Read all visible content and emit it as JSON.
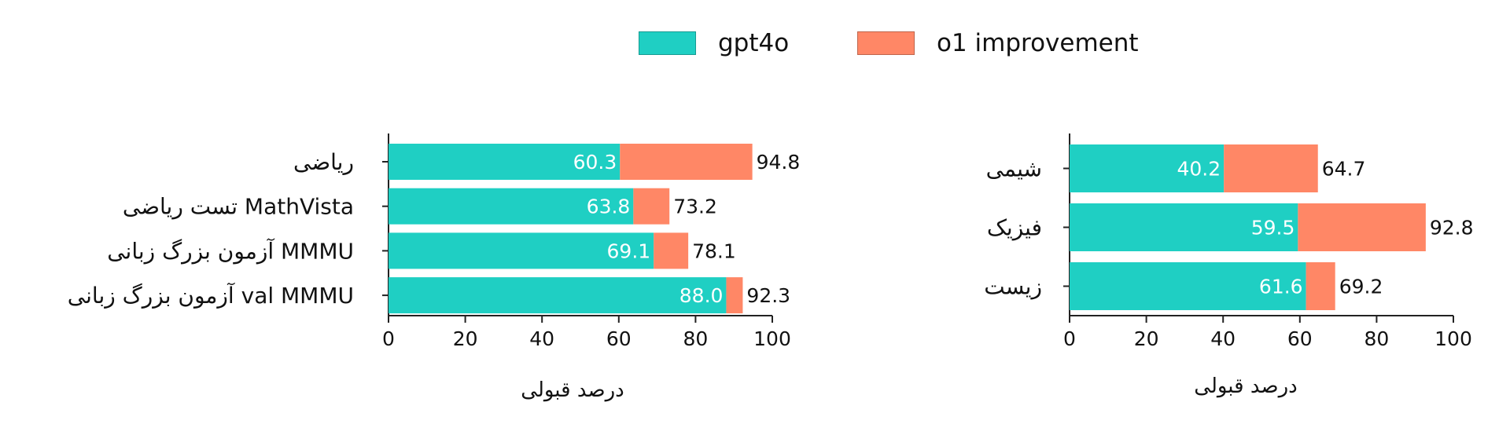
{
  "colors": {
    "gpt4o": "#1fcfc3",
    "o1_improvement": "#ff8766",
    "axis": "#222222"
  },
  "legend": [
    {
      "label": "gpt4o",
      "color_key": "gpt4o"
    },
    {
      "label": "o1 improvement",
      "color_key": "o1_improvement"
    }
  ],
  "chart_data": [
    {
      "type": "bar",
      "orientation": "horizontal",
      "stacked": true,
      "categories": [
        "ریاضی",
        "تست ریاضی MathVista",
        "آزمون بزرگ زبانی MMMU",
        "آزمون بزرگ زبانی val MMMU"
      ],
      "series": [
        {
          "name": "gpt4o",
          "values": [
            60.3,
            63.8,
            69.1,
            88.0
          ],
          "labels": [
            "60.3",
            "63.8",
            "69.1",
            "88.0"
          ]
        },
        {
          "name": "o1 improvement",
          "values": [
            34.5,
            9.4,
            9.0,
            4.3
          ],
          "totals": [
            94.8,
            73.2,
            78.1,
            92.3
          ],
          "labels": [
            "94.8",
            "73.2",
            "78.1",
            "92.3"
          ]
        }
      ],
      "xlabel": "درصد قبولی",
      "xlim": [
        0,
        100
      ],
      "xticks": [
        "0",
        "20",
        "40",
        "60",
        "80",
        "100"
      ],
      "grid": false
    },
    {
      "type": "bar",
      "orientation": "horizontal",
      "stacked": true,
      "categories": [
        "شیمی",
        "فیزیک",
        "زیست"
      ],
      "series": [
        {
          "name": "gpt4o",
          "values": [
            40.2,
            59.5,
            61.6
          ],
          "labels": [
            "40.2",
            "59.5",
            "61.6"
          ]
        },
        {
          "name": "o1 improvement",
          "values": [
            24.5,
            33.3,
            7.6
          ],
          "totals": [
            64.7,
            92.8,
            69.2
          ],
          "labels": [
            "64.7",
            "92.8",
            "69.2"
          ]
        }
      ],
      "xlabel": "درصد قبولی",
      "xlim": [
        0,
        100
      ],
      "xticks": [
        "0",
        "20",
        "40",
        "60",
        "80",
        "100"
      ],
      "grid": false
    }
  ]
}
